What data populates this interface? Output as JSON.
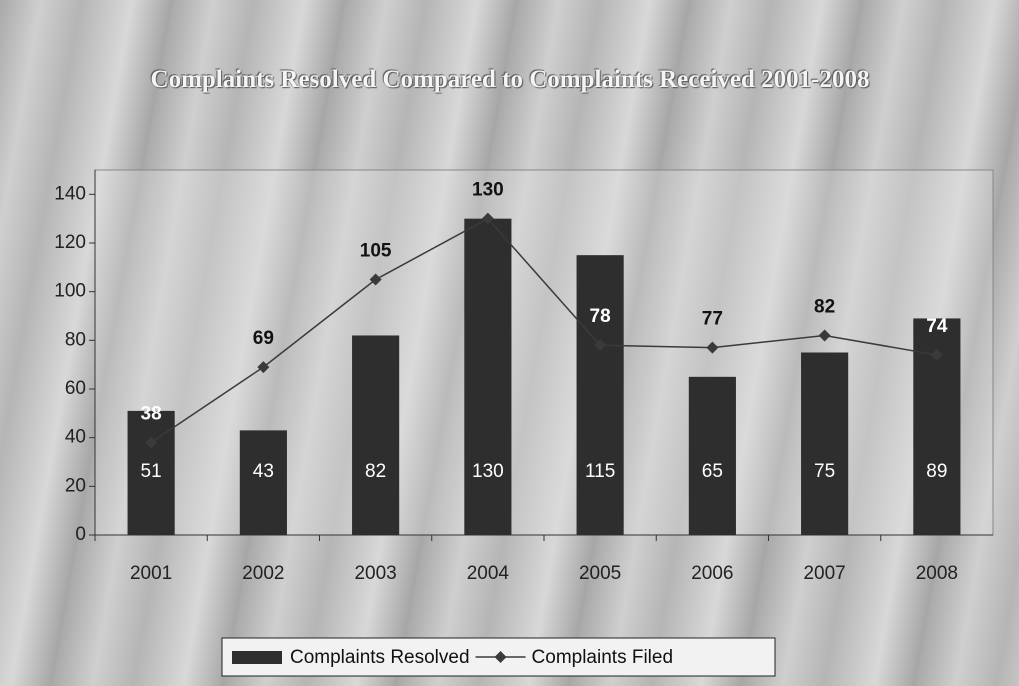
{
  "chart_data": {
    "type": "bar",
    "title": "Complaints Resolved Compared to Complaints Received 2001-2008",
    "categories": [
      "2001",
      "2002",
      "2003",
      "2004",
      "2005",
      "2006",
      "2007",
      "2008"
    ],
    "series": [
      {
        "name": "Complaints Resolved",
        "type": "bar",
        "color": "#2e2e2e",
        "values": [
          51,
          43,
          82,
          130,
          115,
          65,
          75,
          89
        ]
      },
      {
        "name": "Complaints Filed",
        "type": "line",
        "color": "#3a3a3a",
        "values": [
          38,
          69,
          105,
          130,
          78,
          77,
          82,
          74
        ]
      }
    ],
    "ylim": [
      0,
      150
    ],
    "yticks": [
      0,
      20,
      40,
      60,
      80,
      100,
      120,
      140
    ],
    "legend": "bottom"
  }
}
